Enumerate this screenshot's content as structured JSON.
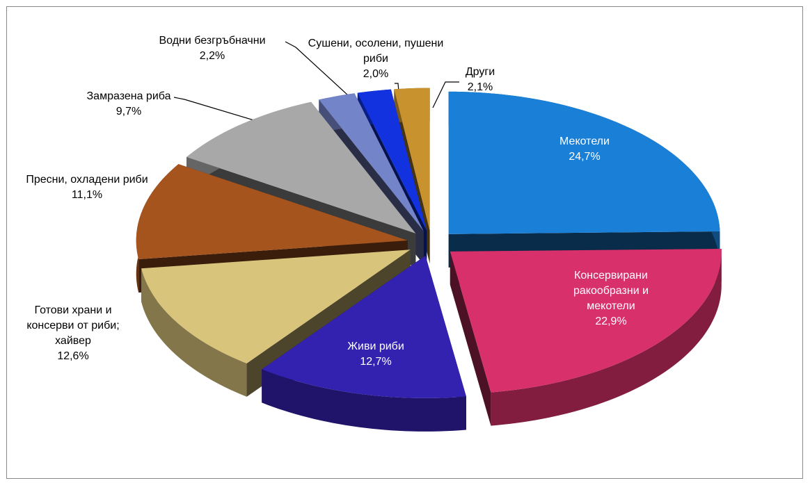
{
  "chart_data": {
    "type": "pie",
    "categories": [
      "Мекотели",
      "Консервирани ракообразни и мекотели",
      "Живи риби",
      "Готови храни и консерви от риби; хайвер",
      "Пресни, охладени риби",
      "Замразена риба",
      "Водни безгръбначни",
      "Сушени, осолени, пушени риби",
      "Други"
    ],
    "values": [
      24.7,
      22.9,
      12.7,
      12.6,
      11.1,
      9.7,
      2.2,
      2.0,
      2.1
    ],
    "value_labels": [
      "24,7%",
      "22,9%",
      "12,7%",
      "12,6%",
      "11,1%",
      "9,7%",
      "2,2%",
      "2,0%",
      "2,1%"
    ],
    "colors": [
      "#1a7fd6",
      "#d8306a",
      "#3322b0",
      "#d9c47c",
      "#a5541e",
      "#a8a8a8",
      "#7484c8",
      "#1232e0",
      "#c8922e"
    ]
  }
}
